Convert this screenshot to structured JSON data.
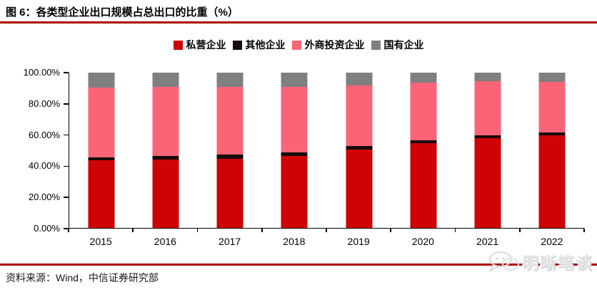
{
  "title": "图 6：各类型企业出口规模占总出口的比重（%）",
  "source": "资料来源：Wind，中信证券研究部",
  "watermark": "明晰笔谈",
  "colors": {
    "accent_rule": "#AE0000",
    "axis": "#000000",
    "private": "#CE0305",
    "other": "#170C0C",
    "foreign": "#FB6477",
    "state": "#7F7F7F"
  },
  "chart_data": {
    "type": "bar",
    "stacked": true,
    "title": "各类型企业出口规模占总出口的比重（%）",
    "categories": [
      "2015",
      "2016",
      "2017",
      "2018",
      "2019",
      "2020",
      "2021",
      "2022"
    ],
    "series": [
      {
        "name": "私营企业",
        "color": "#CE0305",
        "values": [
          43.5,
          44.0,
          44.7,
          46.2,
          50.5,
          54.6,
          57.7,
          59.7
        ]
      },
      {
        "name": "其他企业",
        "color": "#170C0C",
        "values": [
          2.0,
          2.5,
          2.7,
          2.3,
          2.3,
          2.0,
          2.0,
          2.0
        ]
      },
      {
        "name": "外商投资企业",
        "color": "#FB6477",
        "values": [
          44.8,
          44.2,
          43.3,
          42.2,
          39.1,
          36.8,
          34.8,
          32.3
        ]
      },
      {
        "name": "国有企业",
        "color": "#7F7F7F",
        "values": [
          9.7,
          9.3,
          9.3,
          9.3,
          8.1,
          6.6,
          5.5,
          6.0
        ]
      }
    ],
    "xlabel": "",
    "ylabel": "",
    "ylim": [
      0,
      100
    ],
    "ytick_labels": [
      "0.00%",
      "20.00%",
      "40.00%",
      "60.00%",
      "80.00%",
      "100.00%"
    ],
    "ytick_values": [
      0,
      20,
      40,
      60,
      80,
      100
    ],
    "legend_position": "top",
    "grid": false
  }
}
